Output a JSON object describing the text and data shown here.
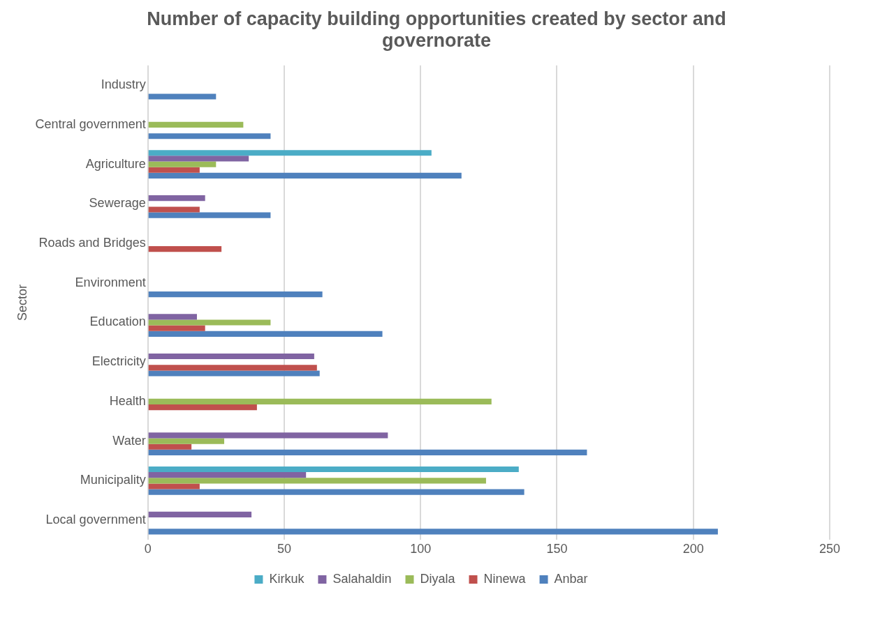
{
  "chart_data": {
    "type": "bar",
    "orientation": "horizontal",
    "title": "Number of capacity building opportunities created by sector and governorate",
    "ylabel": "Sector",
    "categories": [
      "Industry",
      "Central government",
      "Agriculture",
      "Sewerage",
      "Roads and Bridges",
      "Environment",
      "Education",
      "Electricity",
      "Health",
      "Water",
      "Municipality",
      "Local government"
    ],
    "series": [
      {
        "name": "Kirkuk",
        "color": "#4bacc6",
        "values": [
          0,
          0,
          104,
          0,
          0,
          0,
          0,
          0,
          0,
          0,
          136,
          0
        ]
      },
      {
        "name": "Salahaldin",
        "color": "#8064a2",
        "values": [
          0,
          0,
          37,
          21,
          0,
          0,
          18,
          61,
          0,
          88,
          58,
          38
        ]
      },
      {
        "name": "Diyala",
        "color": "#9bbb59",
        "values": [
          0,
          35,
          25,
          0,
          0,
          0,
          45,
          0,
          126,
          28,
          124,
          0
        ]
      },
      {
        "name": "Ninewa",
        "color": "#c0504d",
        "values": [
          0,
          0,
          19,
          19,
          27,
          0,
          21,
          62,
          40,
          16,
          19,
          0
        ]
      },
      {
        "name": "Anbar",
        "color": "#4f81bd",
        "values": [
          25,
          45,
          115,
          45,
          0,
          64,
          86,
          63,
          0,
          161,
          138,
          209
        ]
      }
    ],
    "xlim": [
      0,
      250
    ],
    "xticks": [
      0,
      50,
      100,
      150,
      200,
      250
    ],
    "grid": "x",
    "legend": "bottom"
  }
}
